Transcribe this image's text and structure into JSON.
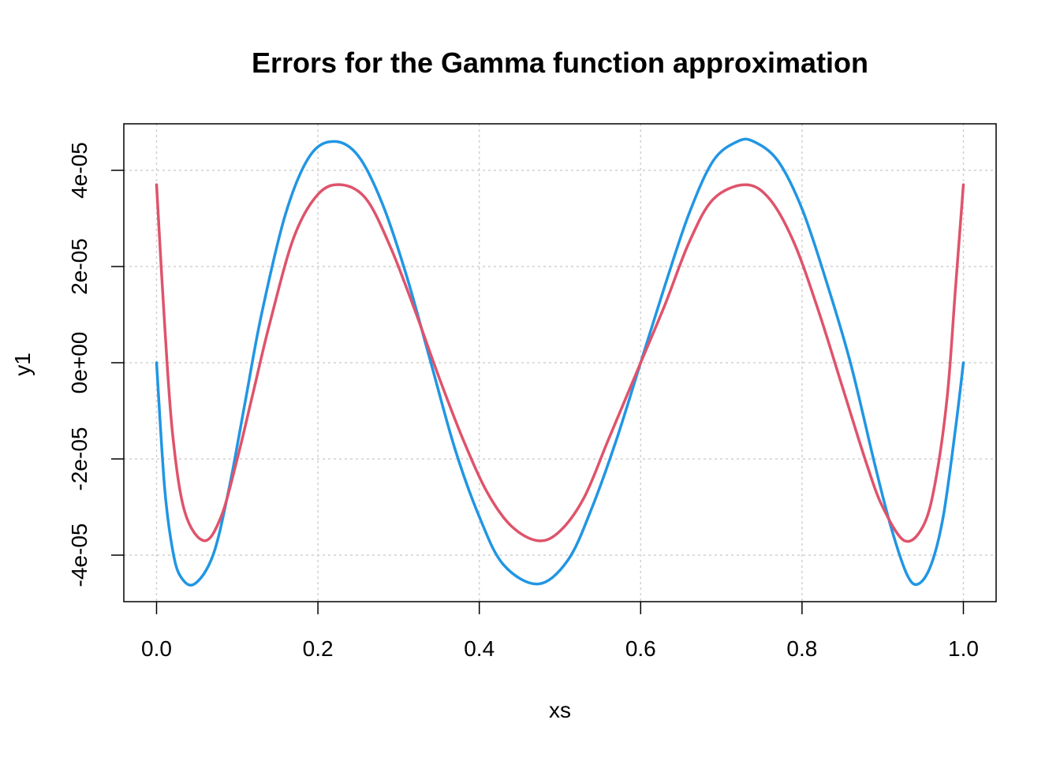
{
  "chart_data": {
    "type": "line",
    "title": "Errors for the Gamma function approximation",
    "xlabel": "xs",
    "ylabel": "y1",
    "xlim": [
      0,
      1
    ],
    "ylim": [
      -5e-05,
      5e-05
    ],
    "x_ticks": [
      0,
      0.2,
      0.4,
      0.6,
      0.8,
      1
    ],
    "x_tick_labels": [
      "0.0",
      "0.2",
      "0.4",
      "0.6",
      "0.8",
      "1.0"
    ],
    "y_ticks": [
      -4e-05,
      -2e-05,
      0,
      2e-05,
      4e-05
    ],
    "y_tick_labels": [
      "-4e-05",
      "-2e-05",
      "0e+00",
      "2e-05",
      "4e-05"
    ],
    "grid": true,
    "series": [
      {
        "color": "#2196e3",
        "x": [
          0,
          0.01,
          0.02,
          0.03,
          0.047,
          0.07,
          0.09,
          0.11,
          0.13,
          0.16,
          0.19,
          0.22,
          0.25,
          0.28,
          0.31,
          0.34,
          0.37,
          0.4,
          0.43,
          0.473,
          0.51,
          0.54,
          0.57,
          0.6,
          0.63,
          0.66,
          0.69,
          0.72,
          0.74,
          0.77,
          0.8,
          0.83,
          0.86,
          0.89,
          0.91,
          0.93,
          0.944,
          0.96,
          0.975,
          0.99,
          1
        ],
        "y": [
          0,
          -2.6e-05,
          -3.9e-05,
          -4.45e-05,
          -4.6e-05,
          -4e-05,
          -2.6e-05,
          -8e-06,
          1e-05,
          3.1e-05,
          4.3e-05,
          4.6e-05,
          4.3e-05,
          3.3e-05,
          1.8e-05,
          0,
          -1.8e-05,
          -3.2e-05,
          -4.2e-05,
          -4.6e-05,
          -4.1e-05,
          -3e-05,
          -1.6e-05,
          0,
          1.6e-05,
          3.1e-05,
          4.2e-05,
          4.6e-05,
          4.6e-05,
          4.2e-05,
          3.2e-05,
          1.7e-05,
          0,
          -2.1e-05,
          -3.4e-05,
          -4.4e-05,
          -4.6e-05,
          -4.2e-05,
          -3.2e-05,
          -1.4e-05,
          0
        ]
      },
      {
        "color": "#df536b",
        "x": [
          0,
          0.01,
          0.02,
          0.035,
          0.059,
          0.08,
          0.1,
          0.12,
          0.14,
          0.17,
          0.2,
          0.229,
          0.26,
          0.29,
          0.32,
          0.35,
          0.38,
          0.41,
          0.44,
          0.473,
          0.5,
          0.53,
          0.56,
          0.6,
          0.63,
          0.66,
          0.69,
          0.73,
          0.76,
          0.79,
          0.82,
          0.85,
          0.88,
          0.9,
          0.927,
          0.95,
          0.965,
          0.98,
          0.99,
          1
        ],
        "y": [
          3.7e-05,
          8e-06,
          -1.5e-05,
          -3.1e-05,
          -3.7e-05,
          -3.2e-05,
          -2e-05,
          -6e-06,
          8e-06,
          2.6e-05,
          3.5e-05,
          3.7e-05,
          3.4e-05,
          2.4e-05,
          1.1e-05,
          -3e-06,
          -1.6e-05,
          -2.7e-05,
          -3.4e-05,
          -3.7e-05,
          -3.5e-05,
          -2.8e-05,
          -1.6e-05,
          0,
          1.2e-05,
          2.5e-05,
          3.4e-05,
          3.7e-05,
          3.4e-05,
          2.5e-05,
          1.1e-05,
          -5e-06,
          -2.1e-05,
          -3e-05,
          -3.7e-05,
          -3.4e-05,
          -2.5e-05,
          -7e-06,
          1.5e-05,
          3.7e-05
        ]
      }
    ]
  }
}
